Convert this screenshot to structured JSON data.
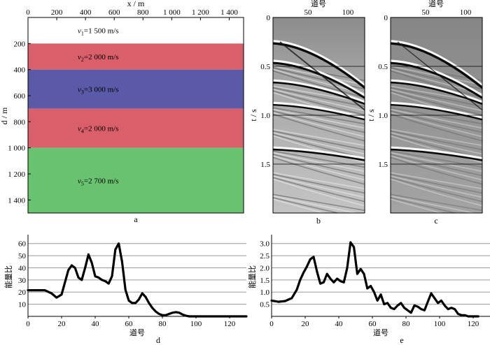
{
  "figure_a": {
    "x_label": "x / m",
    "y_label": "d / m",
    "x_ticks": [
      "0",
      "200",
      "400",
      "600",
      "800",
      "1 000",
      "1 200",
      "1 400"
    ],
    "y_ticks": [
      "200",
      "400",
      "600",
      "800",
      "1 000",
      "1 200",
      "1 400"
    ],
    "caption": "a",
    "layers": [
      {
        "label": "v1=1 500 m/s",
        "color": "#ffffff",
        "top_m": 0,
        "bottom_m": 200
      },
      {
        "label": "v2=2 000 m/s",
        "color": "#d9606a",
        "top_m": 200,
        "bottom_m": 400
      },
      {
        "label": "v3=3 000 m/s",
        "color": "#5b5aa8",
        "top_m": 400,
        "bottom_m": 700
      },
      {
        "label": "v4=2 000 m/s",
        "color": "#d9606a",
        "top_m": 700,
        "bottom_m": 1000
      },
      {
        "label": "v5=2 700 m/s",
        "color": "#68c26f",
        "top_m": 1000,
        "bottom_m": 1500
      }
    ]
  },
  "figure_b": {
    "x_label": "道号",
    "y_label": "t / s",
    "x_ticks": [
      "50",
      "100"
    ],
    "y_ticks": [
      "0",
      "0.5",
      "1.0",
      "1.5"
    ],
    "caption": "b"
  },
  "figure_c": {
    "x_label": "道号",
    "y_label": "t / s",
    "x_ticks": [
      "50",
      "100"
    ],
    "y_ticks": [
      "0",
      "0.5",
      "1.0",
      "1.5"
    ],
    "caption": "c"
  },
  "chart_data": [
    {
      "type": "line",
      "id": "d",
      "caption": "d",
      "xlabel": "道号",
      "ylabel": "能量比",
      "xlim": [
        0,
        130
      ],
      "ylim": [
        0,
        65
      ],
      "x_ticks": [
        "0",
        "20",
        "40",
        "60",
        "80",
        "100",
        "120"
      ],
      "y_ticks": [
        "10",
        "20",
        "30",
        "40",
        "50",
        "60"
      ],
      "x": [
        0,
        5,
        10,
        14,
        17,
        20,
        22,
        24,
        26,
        28,
        30,
        32,
        34,
        36,
        38,
        40,
        42,
        44,
        46,
        48,
        50,
        52,
        54,
        56,
        58,
        60,
        62,
        64,
        66,
        68,
        70,
        72,
        74,
        76,
        78,
        80,
        82,
        84,
        86,
        88,
        90,
        92,
        94,
        96,
        98,
        100,
        105,
        110,
        120,
        130
      ],
      "values": [
        21.5,
        21.5,
        21.5,
        19,
        15.5,
        18,
        28,
        38,
        42,
        40,
        32,
        30,
        40,
        51,
        44,
        33,
        32,
        30,
        29,
        27,
        33,
        55,
        60,
        45,
        22,
        13,
        11,
        11,
        14,
        19,
        16,
        11,
        7,
        4,
        2,
        1,
        1,
        2,
        3,
        3.5,
        3,
        1.5,
        0.5,
        0,
        0,
        0,
        0,
        0,
        0,
        0
      ]
    },
    {
      "type": "line",
      "id": "e",
      "caption": "e",
      "xlabel": "道号",
      "ylabel": "能量比",
      "xlim": [
        0,
        130
      ],
      "ylim": [
        0,
        3.25
      ],
      "x_ticks": [
        "0",
        "20",
        "40",
        "60",
        "80",
        "100",
        "120"
      ],
      "y_ticks": [
        "0.5",
        "1.0",
        "1.5",
        "2.0",
        "2.5",
        "3.0"
      ],
      "x": [
        0,
        4,
        8,
        12,
        15,
        17,
        19,
        21,
        23,
        25,
        27,
        29,
        31,
        33,
        35,
        37,
        39,
        41,
        43,
        45,
        47,
        49,
        51,
        53,
        55,
        57,
        59,
        61,
        63,
        65,
        67,
        69,
        71,
        73,
        75,
        77,
        79,
        81,
        83,
        85,
        87,
        89,
        91,
        93,
        95,
        97,
        99,
        101,
        103,
        105,
        107,
        109,
        111,
        113,
        115,
        117,
        119,
        121,
        123
      ],
      "values": [
        0.65,
        0.6,
        0.63,
        0.75,
        1.1,
        1.5,
        1.8,
        2.05,
        2.35,
        2.45,
        1.85,
        1.35,
        1.4,
        1.75,
        1.55,
        1.4,
        1.55,
        1.45,
        1.4,
        2.0,
        3.05,
        2.85,
        1.75,
        1.95,
        1.75,
        1.15,
        1.25,
        1.0,
        0.65,
        0.9,
        0.5,
        0.55,
        0.35,
        0.3,
        0.45,
        0.55,
        0.35,
        0.25,
        0.15,
        0.45,
        0.4,
        0.3,
        0.25,
        0.6,
        0.95,
        0.75,
        0.55,
        0.65,
        0.45,
        0.3,
        0.35,
        0.3,
        0.1,
        0.05,
        0.05,
        0,
        0,
        0,
        0
      ]
    }
  ]
}
